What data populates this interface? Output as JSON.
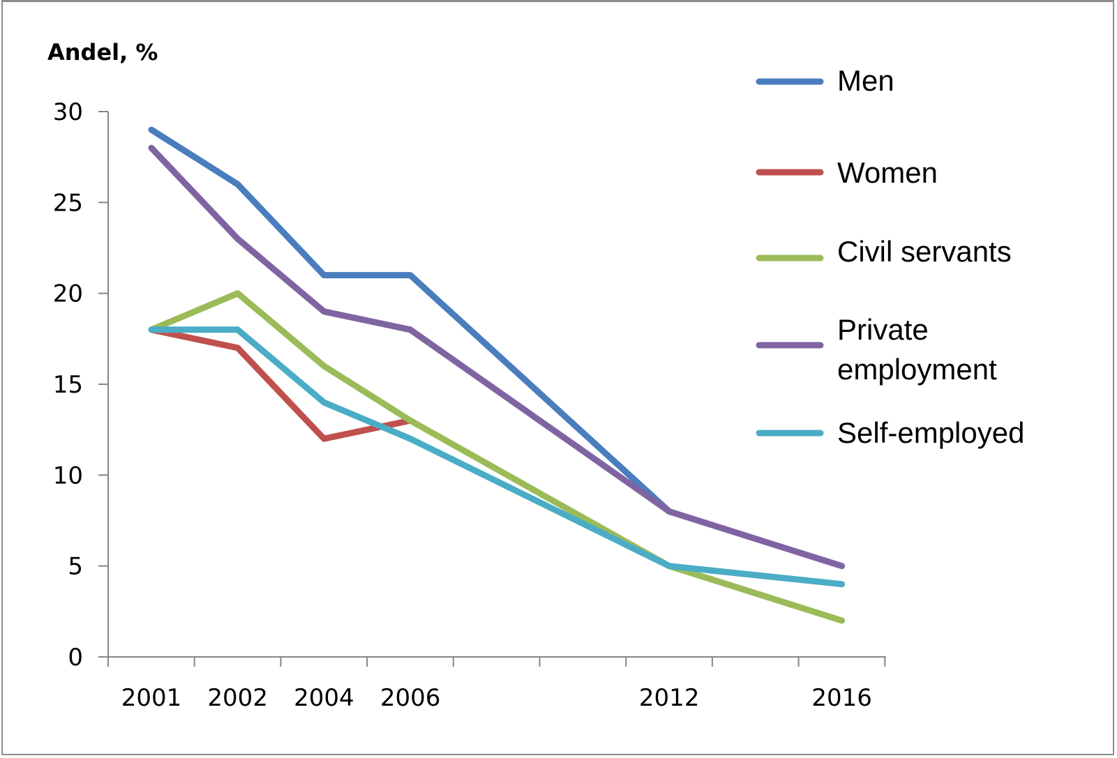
{
  "chart_data": {
    "type": "line",
    "title": "",
    "xlabel": "",
    "ylabel": "Andel, %",
    "ylim": [
      0,
      30
    ],
    "y_ticks": [
      0,
      5,
      10,
      15,
      20,
      25,
      30
    ],
    "x_tick_labels": [
      "2001",
      "2002",
      "2004",
      "2006",
      "2012",
      "2016"
    ],
    "x_axis_years": [
      2001,
      2002,
      2004,
      2006,
      2012,
      2016
    ],
    "grid": false,
    "legend_position": "right",
    "series": [
      {
        "name": "Men",
        "color": "#4a7dbd",
        "points": [
          [
            2001,
            29
          ],
          [
            2002,
            26
          ],
          [
            2004,
            21
          ],
          [
            2006,
            21
          ],
          [
            2012,
            8
          ]
        ]
      },
      {
        "name": "Women",
        "color": "#c0504d",
        "points": [
          [
            2001,
            18
          ],
          [
            2002,
            17
          ],
          [
            2004,
            12
          ],
          [
            2006,
            13
          ]
        ]
      },
      {
        "name": "Civil servants",
        "color": "#9bbb59",
        "points": [
          [
            2001,
            18
          ],
          [
            2002,
            20
          ],
          [
            2004,
            16
          ],
          [
            2006,
            13
          ],
          [
            2012,
            5
          ],
          [
            2016,
            2
          ]
        ]
      },
      {
        "name": "Private employment",
        "color": "#8064a2",
        "points": [
          [
            2001,
            28
          ],
          [
            2002,
            23
          ],
          [
            2004,
            19
          ],
          [
            2006,
            18
          ],
          [
            2012,
            8
          ],
          [
            2016,
            5
          ]
        ]
      },
      {
        "name": "Self-employed",
        "color": "#4bacc6",
        "points": [
          [
            2001,
            18
          ],
          [
            2002,
            18
          ],
          [
            2004,
            14
          ],
          [
            2006,
            12
          ],
          [
            2012,
            5
          ],
          [
            2016,
            4
          ]
        ]
      }
    ]
  }
}
